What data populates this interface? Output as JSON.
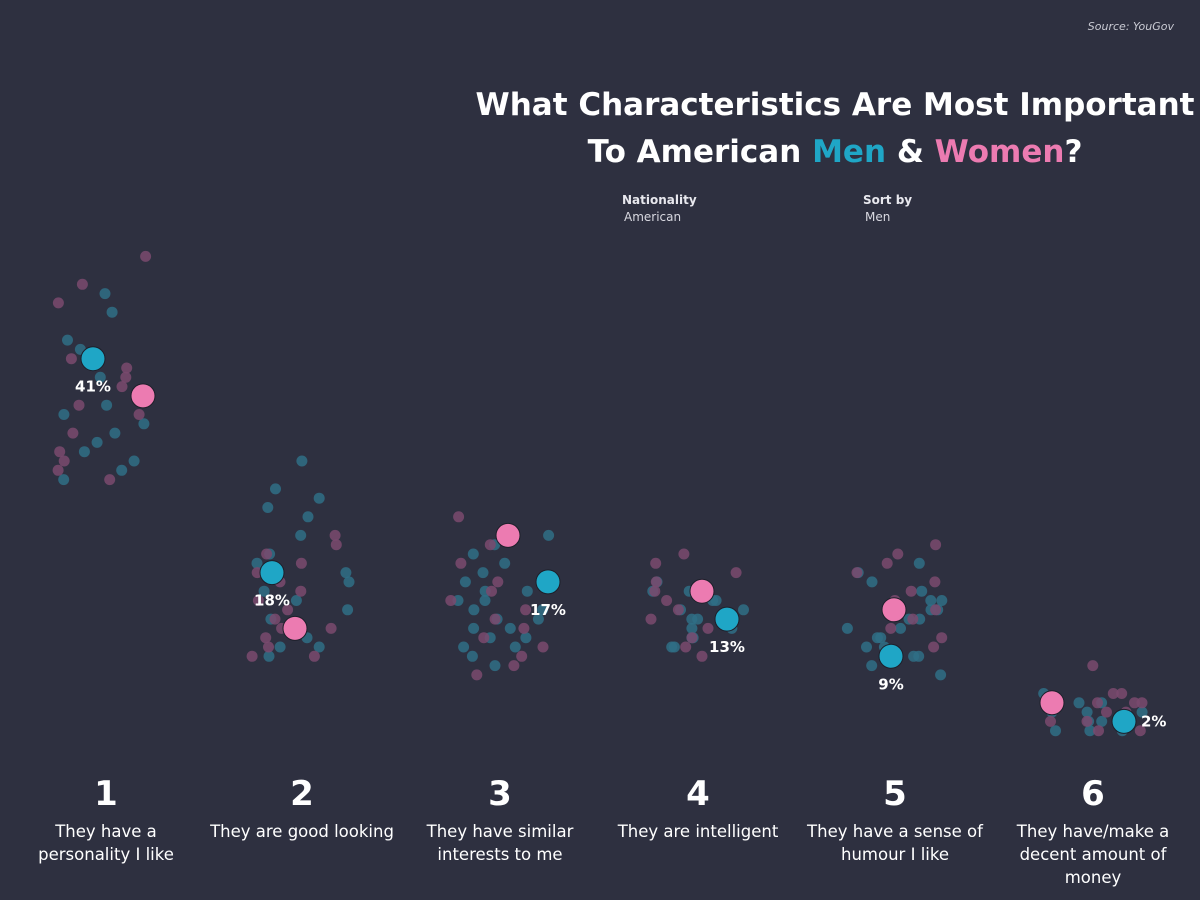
{
  "source": "Source: YouGov",
  "title": {
    "line1": "What Characteristics Are Most Important",
    "line2_prefix": "To American ",
    "men": "Men",
    "amp": " & ",
    "women": "Women",
    "end": "?"
  },
  "filters": {
    "nationality_label": "Nationality",
    "nationality_value": "American",
    "sort_label": "Sort by",
    "sort_value": "Men"
  },
  "colors": {
    "background": "#2e3040",
    "men": "#1fa6c6",
    "women": "#ec7bb1",
    "men_faded": "#2f6f86",
    "women_faded": "#7a4a6e"
  },
  "chart_data": {
    "type": "scatter",
    "title": "What Characteristics Are Most Important To American Men & Women?",
    "xlabel": "",
    "ylabel": "",
    "grid": false,
    "legend": "none",
    "categories": [
      {
        "rank": "1",
        "label": "They have a personality I like"
      },
      {
        "rank": "2",
        "label": "They are good looking"
      },
      {
        "rank": "3",
        "label": "They have similar interests to me"
      },
      {
        "rank": "4",
        "label": "They are intelligent"
      },
      {
        "rank": "5",
        "label": "They have a sense of humour I like"
      },
      {
        "rank": "6",
        "label": "They have/make a decent amount of money"
      }
    ],
    "series": [
      {
        "name": "Men",
        "values": [
          41,
          18,
          17,
          13,
          9,
          2
        ],
        "labels": [
          "41%",
          "18%",
          "17%",
          "13%",
          "9%",
          "2%"
        ]
      },
      {
        "name": "Women",
        "values": [
          37,
          12,
          22,
          16,
          14,
          4
        ]
      }
    ],
    "background_points": {
      "note_values": "faded points are other nationalities; values in percent",
      "men": [
        [
          48,
          46,
          43,
          42,
          39,
          36,
          35,
          34,
          33,
          32,
          31,
          30,
          29,
          28
        ],
        [
          30,
          27,
          26,
          25,
          24,
          22,
          20,
          19,
          18,
          17,
          16,
          15,
          14,
          13,
          12,
          11,
          10,
          10,
          9
        ],
        [
          22,
          21,
          20,
          19,
          18,
          17,
          16,
          16,
          15,
          15,
          14,
          14,
          13,
          13,
          12,
          12,
          11,
          11,
          10,
          10,
          9,
          8
        ],
        [
          17,
          16,
          16,
          15,
          15,
          14,
          14,
          13,
          13,
          12,
          12,
          11,
          11,
          10,
          10
        ],
        [
          19,
          18,
          17,
          16,
          15,
          15,
          14,
          14,
          13,
          13,
          12,
          12,
          11,
          11,
          10,
          10,
          9,
          9,
          8,
          7
        ],
        [
          5,
          4,
          4,
          3,
          3,
          3,
          2,
          2,
          2,
          1,
          1,
          1
        ]
      ],
      "women": [
        [
          52,
          49,
          47,
          41,
          40,
          39,
          38,
          37,
          36,
          35,
          33,
          31,
          30,
          29,
          28
        ],
        [
          22,
          21,
          20,
          19,
          18,
          17,
          16,
          15,
          14,
          13,
          12,
          12,
          11,
          10,
          9,
          9
        ],
        [
          24,
          21,
          19,
          17,
          16,
          15,
          14,
          13,
          12,
          11,
          10,
          9,
          8,
          7
        ],
        [
          20,
          19,
          18,
          17,
          16,
          15,
          14,
          13,
          12,
          11,
          10,
          9
        ],
        [
          21,
          20,
          19,
          18,
          17,
          16,
          15,
          14,
          13,
          12,
          11,
          10,
          9
        ],
        [
          8,
          5,
          5,
          4,
          4,
          4,
          3,
          3,
          2,
          2,
          1,
          1
        ]
      ]
    },
    "ylim": [
      0,
      55
    ]
  }
}
